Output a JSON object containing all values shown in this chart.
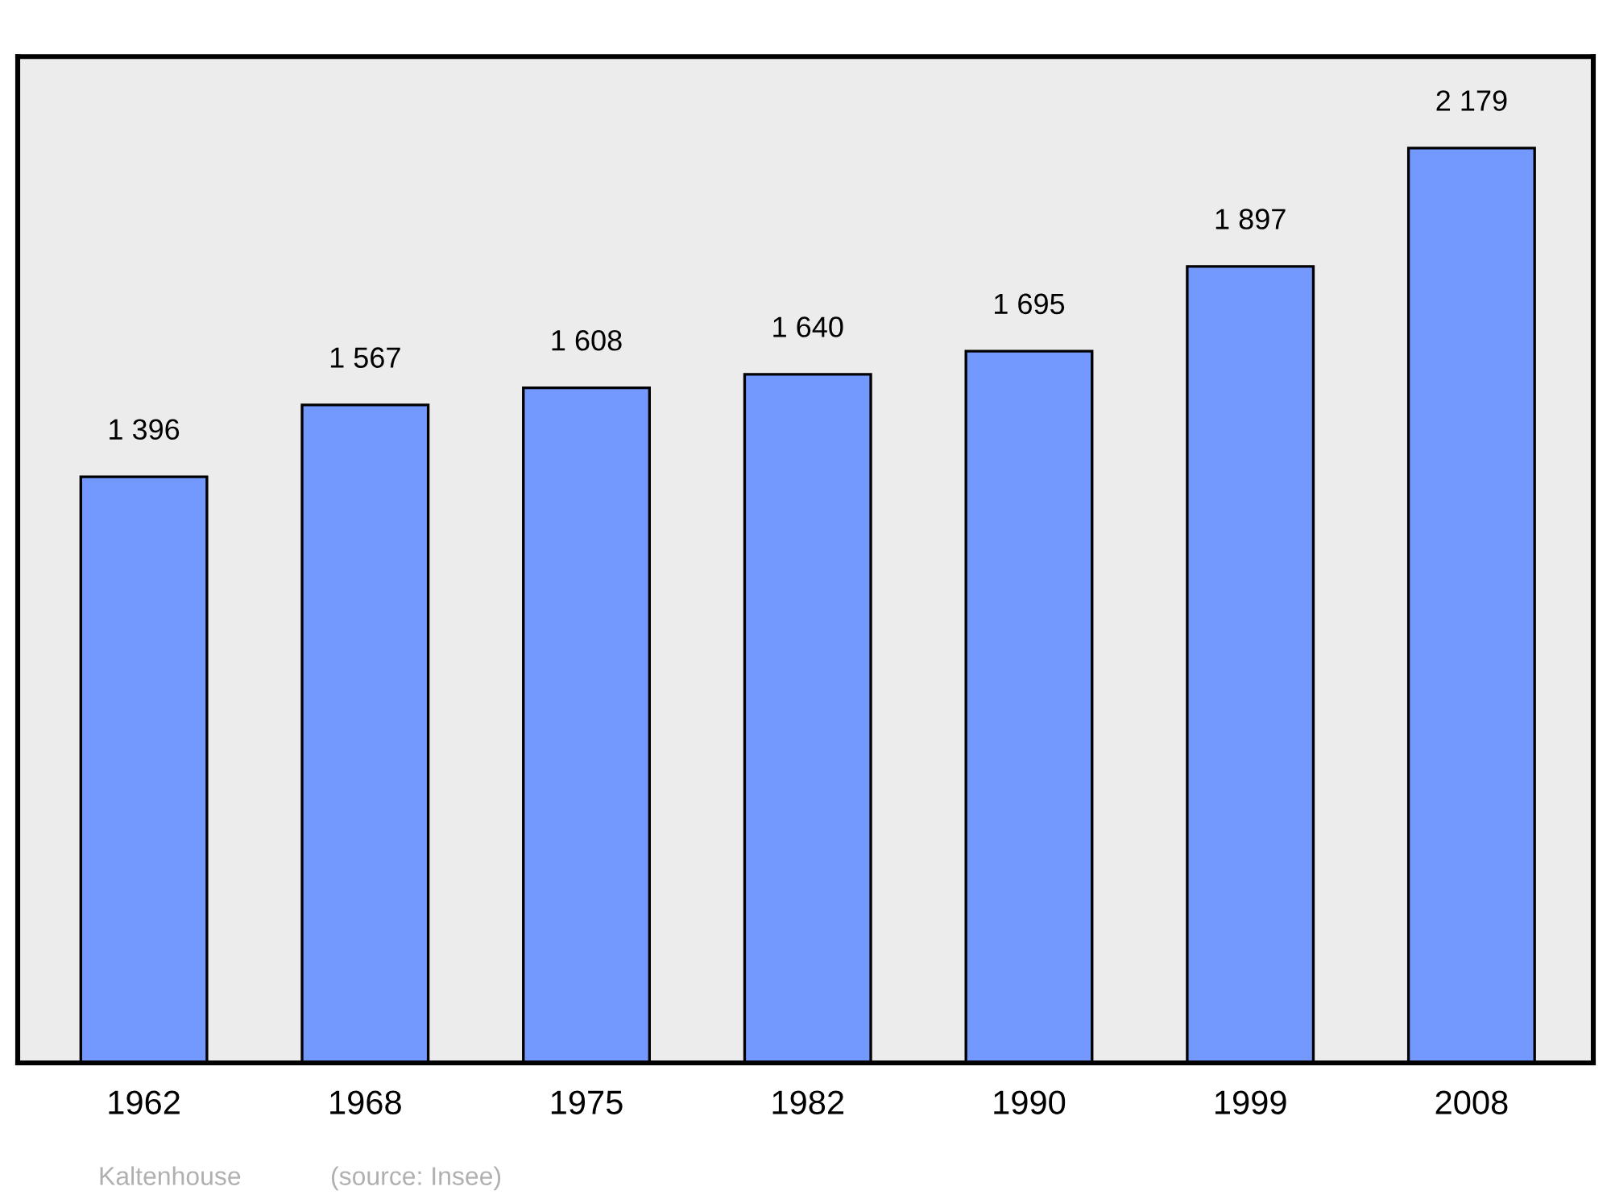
{
  "chart_data": {
    "type": "bar",
    "categories": [
      "1962",
      "1968",
      "1975",
      "1982",
      "1990",
      "1999",
      "2008"
    ],
    "values": [
      1396,
      1567,
      1608,
      1640,
      1695,
      1897,
      2179
    ],
    "value_labels": [
      "1 396",
      "1 567",
      "1 608",
      "1 640",
      "1 695",
      "1 897",
      "2 179"
    ],
    "color": "#7399ff",
    "annotations": [
      "Kaltenhouse",
      "(source: Insee)"
    ],
    "grid": false,
    "legend": false
  }
}
